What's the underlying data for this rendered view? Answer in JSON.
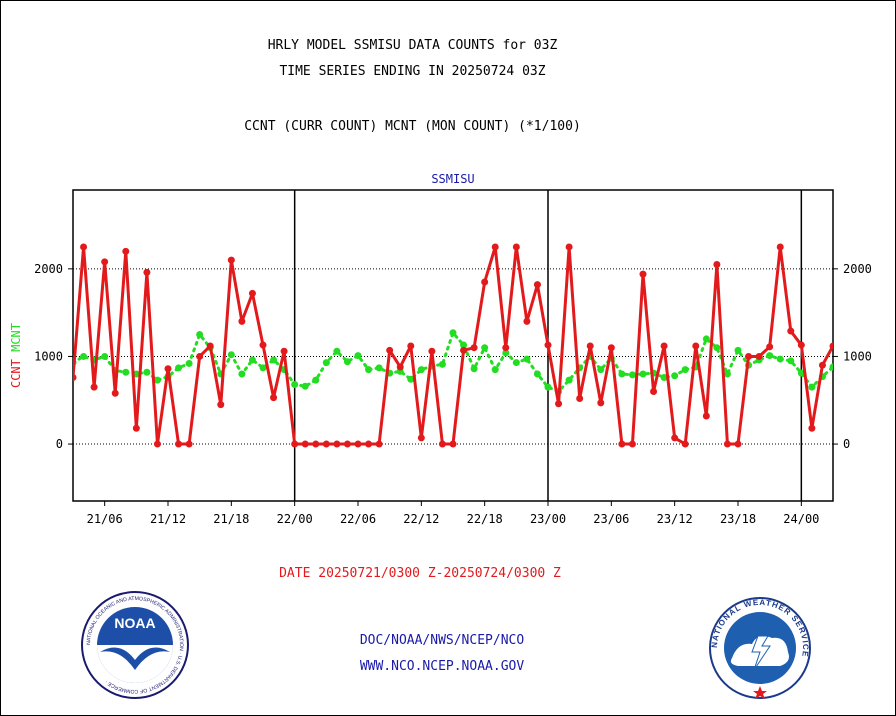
{
  "header": {
    "title_line1": "HRLY MODEL SSMISU DATA COUNTS for 03Z",
    "title_line2": "TIME SERIES ENDING IN 20250724 03Z",
    "subtitle": "CCNT (CURR COUNT) MCNT (MON COUNT) (*1/100)"
  },
  "footer": {
    "date_range": "DATE 20250721/0300 Z-20250724/0300 Z",
    "org": "DOC/NOAA/NWS/NCEP/NCO",
    "url": "WWW.NCO.NCEP.NOAA.GOV"
  },
  "logos": {
    "noaa_text": "NOAA",
    "noaa_ring": "NATIONAL OCEANIC AND ATMOSPHERIC ADMINISTRATION · U.S. DEPARTMENT OF COMMERCE ·",
    "nws_ring": "NATIONAL WEATHER SERVICE"
  },
  "colors": {
    "ccnt": "#e31a1c",
    "mcnt": "#22dd22",
    "panel_title": "#1a1aaa",
    "footer": "#1a1aaa"
  },
  "chart_data": {
    "type": "line",
    "title": "SSMISU",
    "ylabel": "CCNT MCNT",
    "ylabel_parts": [
      "CCNT",
      "MCNT"
    ],
    "ylim": [
      -650,
      2900
    ],
    "yticks": [
      0,
      1000,
      2000
    ],
    "ytick_labels": [
      "0",
      "1000",
      "2000"
    ],
    "gridlines_y": [
      0,
      1000,
      2000
    ],
    "x_unit": "hours since 21/00",
    "xlim": [
      3,
      75
    ],
    "xticks": [
      6,
      12,
      18,
      24,
      30,
      36,
      42,
      48,
      54,
      60,
      66,
      72
    ],
    "xtick_labels": [
      "21/06",
      "21/12",
      "21/18",
      "22/00",
      "22/06",
      "22/12",
      "22/18",
      "23/00",
      "23/06",
      "23/12",
      "23/18",
      "24/00"
    ],
    "day_boundaries": [
      24,
      48,
      72
    ],
    "series": [
      {
        "name": "CCNT",
        "x": [
          3,
          4,
          5,
          6,
          7,
          8,
          9,
          10,
          11,
          12,
          13,
          14,
          15,
          16,
          17,
          18,
          19,
          20,
          21,
          22,
          23,
          24,
          25,
          26,
          27,
          28,
          29,
          30,
          31,
          32,
          33,
          34,
          35,
          36,
          37,
          38,
          39,
          40,
          41,
          42,
          43,
          44,
          45,
          46,
          47,
          48,
          49,
          50,
          51,
          52,
          53,
          54,
          55,
          56,
          57,
          58,
          59,
          60,
          61,
          62,
          63,
          64,
          65,
          66,
          67,
          68,
          69,
          70,
          71,
          72,
          73,
          74,
          75
        ],
        "values": [
          760,
          2250,
          650,
          2080,
          580,
          2200,
          180,
          1960,
          0,
          860,
          0,
          0,
          1000,
          1120,
          450,
          2100,
          1400,
          1720,
          1130,
          530,
          1060,
          0,
          0,
          0,
          0,
          0,
          0,
          0,
          0,
          0,
          1070,
          880,
          1120,
          70,
          1060,
          0,
          0,
          1070,
          1100,
          1850,
          2250,
          1100,
          2250,
          1400,
          1820,
          1130,
          460,
          2250,
          520,
          1120,
          470,
          1100,
          0,
          0,
          1940,
          600,
          1120,
          70,
          0,
          1120,
          320,
          2050,
          0,
          0,
          1000,
          1000,
          1110,
          2250,
          1290,
          1130,
          180,
          900,
          1120
        ]
      },
      {
        "name": "MCNT",
        "x": [
          3,
          4,
          5,
          6,
          7,
          8,
          9,
          10,
          11,
          12,
          13,
          14,
          15,
          16,
          17,
          18,
          19,
          20,
          21,
          22,
          23,
          24,
          25,
          26,
          27,
          28,
          29,
          30,
          31,
          32,
          33,
          34,
          35,
          36,
          37,
          38,
          39,
          40,
          41,
          42,
          43,
          44,
          45,
          46,
          47,
          48,
          49,
          50,
          51,
          52,
          53,
          54,
          55,
          56,
          57,
          58,
          59,
          60,
          61,
          62,
          63,
          64,
          65,
          66,
          67,
          68,
          69,
          70,
          71,
          72,
          73,
          74,
          75
        ],
        "values": [
          930,
          1000,
          960,
          1000,
          840,
          820,
          800,
          820,
          730,
          770,
          870,
          920,
          1250,
          1100,
          800,
          1020,
          800,
          960,
          870,
          960,
          850,
          680,
          660,
          730,
          930,
          1060,
          940,
          1010,
          850,
          870,
          810,
          830,
          740,
          850,
          890,
          910,
          1270,
          1130,
          860,
          1100,
          850,
          1040,
          930,
          970,
          800,
          650,
          600,
          730,
          870,
          1000,
          850,
          980,
          800,
          790,
          800,
          810,
          760,
          780,
          850,
          880,
          1200,
          1100,
          800,
          1070,
          900,
          960,
          1010,
          970,
          950,
          810,
          650,
          770,
          880
        ]
      }
    ]
  }
}
